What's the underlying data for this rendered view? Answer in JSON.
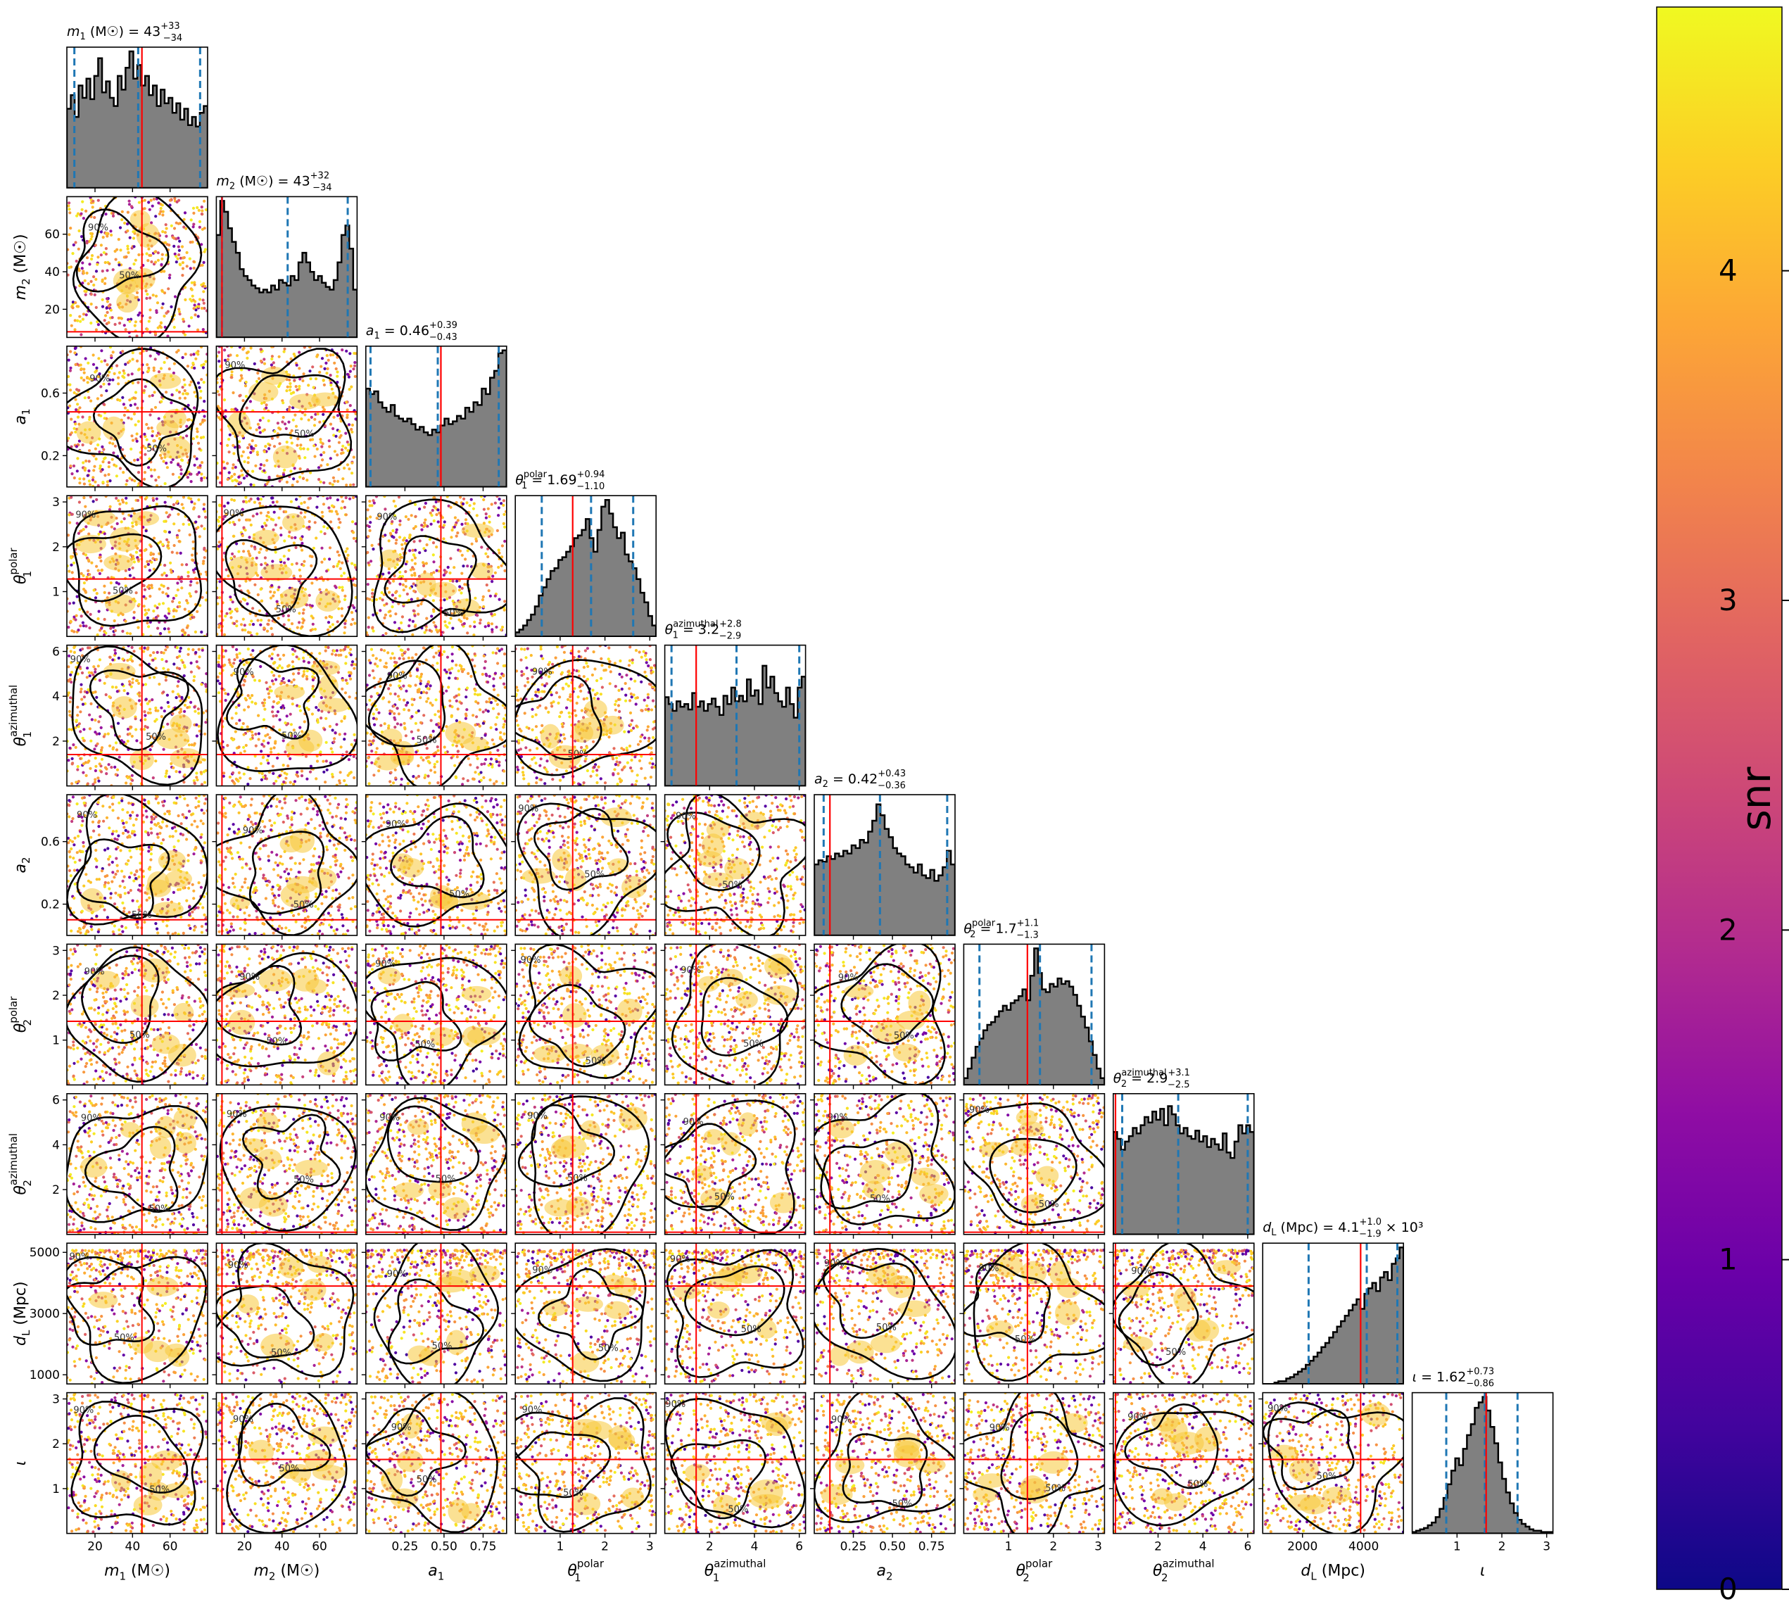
{
  "figure": {
    "type": "corner plot",
    "colorbar": {
      "label": "snr",
      "range": [
        0,
        4.8
      ],
      "ticks": [
        "0",
        "1",
        "2",
        "3",
        "4"
      ],
      "colormap": "plasma"
    },
    "contour_levels": [
      "50%",
      "90%"
    ],
    "colors": {
      "histogram_fill": "#808080",
      "histogram_edge": "#000000",
      "quantile_lines": "#1f77b4",
      "truth_lines": "#ff0000",
      "contours": "#000000"
    }
  },
  "chart_data": {
    "type": "corner",
    "parameters": [
      {
        "key": "m1",
        "symbol": "m",
        "sub": "1",
        "sup": "",
        "unit": " (M☉)",
        "summary": " = 43",
        "err_plus": "+33",
        "err_minus": "−34",
        "suffix": "",
        "range": [
          5,
          80
        ],
        "ticks": [
          20,
          40,
          60
        ],
        "tick_labels": [
          "20",
          "40",
          "60"
        ],
        "truth": 45,
        "quantiles": [
          9,
          43,
          76
        ],
        "hist": [
          0.58,
          0.68,
          0.52,
          0.75,
          0.66,
          0.8,
          0.65,
          0.82,
          0.95,
          0.7,
          0.78,
          0.66,
          0.6,
          0.82,
          0.72,
          0.88,
          1.0,
          0.8,
          0.9,
          0.75,
          0.82,
          0.68,
          0.75,
          0.6,
          0.72,
          0.62,
          0.66,
          0.55,
          0.62,
          0.5,
          0.58,
          0.46,
          0.52,
          0.45,
          0.55,
          0.6
        ]
      },
      {
        "key": "m2",
        "symbol": "m",
        "sub": "2",
        "sup": "",
        "unit": " (M☉)",
        "summary": " = 43",
        "err_plus": "+32",
        "err_minus": "−34",
        "suffix": "",
        "range": [
          5,
          80
        ],
        "ticks": [
          20,
          40,
          60
        ],
        "tick_labels": [
          "20",
          "40",
          "60"
        ],
        "truth": 8,
        "quantiles": [
          8,
          43,
          75
        ],
        "hist": [
          0.75,
          1.0,
          0.92,
          0.8,
          0.7,
          0.62,
          0.5,
          0.45,
          0.42,
          0.38,
          0.36,
          0.33,
          0.35,
          0.33,
          0.38,
          0.35,
          0.42,
          0.4,
          0.38,
          0.45,
          0.42,
          0.55,
          0.62,
          0.55,
          0.48,
          0.42,
          0.45,
          0.4,
          0.37,
          0.35,
          0.42,
          0.55,
          0.75,
          0.82,
          0.65,
          0.35
        ]
      },
      {
        "key": "a1",
        "symbol": "a",
        "sub": "1",
        "sup": "",
        "unit": "",
        "summary": " = 0.46",
        "err_plus": "+0.39",
        "err_minus": "−0.43",
        "suffix": "",
        "range": [
          0,
          0.9
        ],
        "ticks": [
          0.2,
          0.6
        ],
        "tick_labels": [
          "0.2",
          "0.6"
        ],
        "xticks": [
          0.25,
          0.5,
          0.75
        ],
        "xtick_labels": [
          "0.25",
          "0.50",
          "0.75"
        ],
        "truth": 0.48,
        "quantiles": [
          0.03,
          0.46,
          0.85
        ],
        "hist": [
          0.72,
          0.68,
          0.7,
          0.62,
          0.58,
          0.55,
          0.6,
          0.52,
          0.5,
          0.48,
          0.5,
          0.46,
          0.42,
          0.44,
          0.4,
          0.38,
          0.42,
          0.4,
          0.45,
          0.5,
          0.46,
          0.48,
          0.52,
          0.5,
          0.58,
          0.55,
          0.62,
          0.6,
          0.72,
          0.68,
          0.8,
          0.85,
          0.98,
          1.0
        ]
      },
      {
        "key": "theta1_polar",
        "symbol": "θ",
        "sub": "1",
        "sup": "polar",
        "unit": "",
        "summary": " = 1.69",
        "err_plus": "+0.94",
        "err_minus": "−1.10",
        "suffix": "",
        "range": [
          0,
          3.14
        ],
        "ticks": [
          1,
          2,
          3
        ],
        "tick_labels": [
          "1",
          "2",
          "3"
        ],
        "truth": 1.28,
        "quantiles": [
          0.59,
          1.69,
          2.63
        ],
        "hist": [
          0.03,
          0.05,
          0.08,
          0.12,
          0.16,
          0.22,
          0.3,
          0.36,
          0.42,
          0.48,
          0.5,
          0.56,
          0.58,
          0.62,
          0.66,
          0.72,
          0.74,
          0.78,
          0.86,
          0.72,
          0.62,
          0.78,
          0.95,
          1.0,
          0.9,
          0.8,
          0.72,
          0.76,
          0.6,
          0.55,
          0.5,
          0.42,
          0.32,
          0.25,
          0.15,
          0.08
        ]
      },
      {
        "key": "theta1_azimuthal",
        "symbol": "θ",
        "sub": "1",
        "sup": "azimuthal",
        "unit": "",
        "summary": " = 3.2",
        "err_plus": "+2.8",
        "err_minus": "−2.9",
        "suffix": "",
        "range": [
          0,
          6.28
        ],
        "ticks": [
          2,
          4,
          6
        ],
        "tick_labels": [
          "2",
          "4",
          "6"
        ],
        "truth": 1.4,
        "quantiles": [
          0.3,
          3.2,
          6.0
        ],
        "hist": [
          0.65,
          0.6,
          0.55,
          0.62,
          0.58,
          0.6,
          0.56,
          0.68,
          0.58,
          0.62,
          0.55,
          0.6,
          0.64,
          0.58,
          0.52,
          0.66,
          0.6,
          0.72,
          0.62,
          0.66,
          0.62,
          0.78,
          0.66,
          0.7,
          0.6,
          0.88,
          0.72,
          0.8,
          0.68,
          0.62,
          0.58,
          0.72,
          0.6,
          0.5,
          0.72,
          0.8
        ]
      },
      {
        "key": "a2",
        "symbol": "a",
        "sub": "2",
        "sup": "",
        "unit": "",
        "summary": " = 0.42",
        "err_plus": "+0.43",
        "err_minus": "−0.36",
        "suffix": "",
        "range": [
          0,
          0.9
        ],
        "ticks": [
          0.2,
          0.6
        ],
        "tick_labels": [
          "0.2",
          "0.6"
        ],
        "xticks": [
          0.25,
          0.5,
          0.75
        ],
        "xtick_labels": [
          "0.25",
          "0.50",
          "0.75"
        ],
        "truth": 0.1,
        "quantiles": [
          0.06,
          0.42,
          0.85
        ],
        "hist": [
          0.52,
          0.55,
          0.54,
          0.58,
          0.56,
          0.6,
          0.58,
          0.62,
          0.6,
          0.66,
          0.64,
          0.7,
          0.68,
          0.76,
          0.84,
          0.96,
          0.88,
          0.78,
          0.72,
          0.64,
          0.6,
          0.58,
          0.52,
          0.5,
          0.46,
          0.52,
          0.44,
          0.42,
          0.48,
          0.4,
          0.44,
          0.5,
          0.62,
          0.52
        ]
      },
      {
        "key": "theta2_polar",
        "symbol": "θ",
        "sub": "2",
        "sup": "polar",
        "unit": "",
        "summary": " = 1.7",
        "err_plus": "+1.1",
        "err_minus": "−1.3",
        "suffix": "",
        "range": [
          0,
          3.14
        ],
        "ticks": [
          1,
          2,
          3
        ],
        "tick_labels": [
          "1",
          "2",
          "3"
        ],
        "truth": 1.42,
        "quantiles": [
          0.35,
          1.7,
          2.85
        ],
        "hist": [
          0.05,
          0.12,
          0.2,
          0.28,
          0.34,
          0.4,
          0.44,
          0.46,
          0.5,
          0.54,
          0.58,
          0.55,
          0.6,
          0.62,
          0.65,
          0.7,
          0.62,
          0.8,
          1.0,
          0.82,
          0.7,
          0.68,
          0.74,
          0.72,
          0.78,
          0.74,
          0.76,
          0.72,
          0.66,
          0.58,
          0.5,
          0.42,
          0.32,
          0.22,
          0.12,
          0.05
        ]
      },
      {
        "key": "theta2_azimuthal",
        "symbol": "θ",
        "sub": "2",
        "sup": "azimuthal",
        "unit": "",
        "summary": " = 2.9",
        "err_plus": "+3.1",
        "err_minus": "−2.5",
        "suffix": "",
        "range": [
          0,
          6.28
        ],
        "ticks": [
          2,
          4,
          6
        ],
        "tick_labels": [
          "2",
          "4",
          "6"
        ],
        "truth": 0.1,
        "quantiles": [
          0.4,
          2.9,
          6.0
        ],
        "hist": [
          0.75,
          0.7,
          0.62,
          0.68,
          0.72,
          0.78,
          0.74,
          0.8,
          0.86,
          0.82,
          0.9,
          0.84,
          0.92,
          0.8,
          0.94,
          0.88,
          0.8,
          0.74,
          0.78,
          0.72,
          0.7,
          0.76,
          0.68,
          0.72,
          0.64,
          0.7,
          0.66,
          0.62,
          0.74,
          0.6,
          0.56,
          0.68,
          0.8,
          0.74,
          0.8,
          0.75
        ]
      },
      {
        "key": "dL",
        "symbol": "d",
        "sub": "L",
        "sup": "",
        "unit": " (Mpc)",
        "summary": " = 4.1",
        "err_plus": "+1.0",
        "err_minus": "−1.9",
        "suffix": " × 10³",
        "range": [
          700,
          5300
        ],
        "ticks": [
          1000,
          3000,
          5000
        ],
        "tick_labels": [
          "1000",
          "3000",
          "5000"
        ],
        "xticks": [
          2000,
          4000
        ],
        "xtick_labels": [
          "2000",
          "4000"
        ],
        "truth": 3900,
        "quantiles": [
          2200,
          4100,
          5100
        ],
        "hist": [
          0.0,
          0.0,
          0.0,
          0.01,
          0.02,
          0.02,
          0.04,
          0.05,
          0.07,
          0.09,
          0.11,
          0.14,
          0.17,
          0.2,
          0.23,
          0.27,
          0.3,
          0.34,
          0.38,
          0.42,
          0.46,
          0.5,
          0.54,
          0.58,
          0.62,
          0.55,
          0.66,
          0.7,
          0.74,
          0.68,
          0.78,
          0.82,
          0.76,
          0.88,
          0.92,
          1.0
        ]
      },
      {
        "key": "iota",
        "symbol": "ι",
        "sub": "",
        "sup": "",
        "unit": "",
        "summary": " = 1.62",
        "err_plus": "+0.73",
        "err_minus": "−0.86",
        "suffix": "",
        "range": [
          0,
          3.14
        ],
        "ticks": [
          1,
          2,
          3
        ],
        "tick_labels": [
          "1",
          "2",
          "3"
        ],
        "truth": 1.65,
        "quantiles": [
          0.76,
          1.62,
          2.35
        ],
        "hist": [
          0.01,
          0.02,
          0.03,
          0.04,
          0.06,
          0.08,
          0.12,
          0.18,
          0.26,
          0.36,
          0.46,
          0.55,
          0.5,
          0.62,
          0.72,
          0.8,
          0.92,
          0.96,
          1.0,
          0.9,
          0.78,
          0.66,
          0.52,
          0.4,
          0.3,
          0.22,
          0.15,
          0.1,
          0.07,
          0.05,
          0.03,
          0.02,
          0.02,
          0.01,
          0.01,
          0.01
        ]
      }
    ]
  }
}
